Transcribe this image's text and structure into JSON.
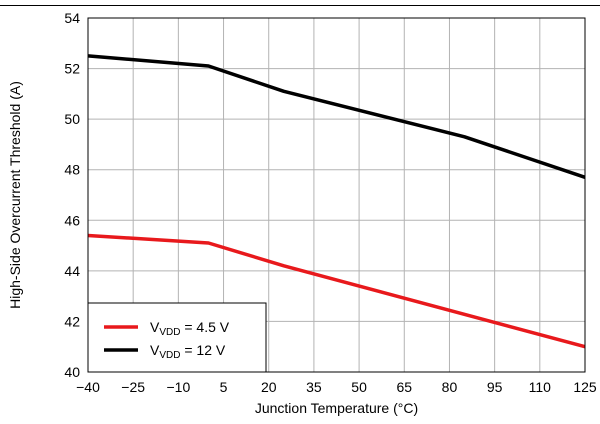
{
  "chart_data": {
    "type": "line",
    "title": "",
    "xlabel": "Junction Temperature (°C)",
    "ylabel": "High-Side Overcurrent Threshold (A)",
    "xlim": [
      -40,
      125
    ],
    "ylim": [
      40,
      54
    ],
    "xticks": [
      -40,
      -25,
      -10,
      5,
      20,
      35,
      50,
      65,
      80,
      95,
      110,
      125
    ],
    "yticks": [
      40,
      42,
      44,
      46,
      48,
      50,
      52,
      54
    ],
    "x_tick_labels": [
      "−40",
      "−25",
      "−10",
      "5",
      "20",
      "35",
      "50",
      "65",
      "80",
      "95",
      "110",
      "125"
    ],
    "y_tick_labels": [
      "40",
      "42",
      "44",
      "46",
      "48",
      "50",
      "52",
      "54"
    ],
    "grid": true,
    "legend_position": "bottom-left",
    "series": [
      {
        "name": "V_VDD = 4.5 V",
        "legend": {
          "main": "V",
          "sub": "VDD",
          "rest": " = 4.5 V"
        },
        "color": "#e8191c",
        "x": [
          -40,
          0,
          25,
          125
        ],
        "y": [
          45.4,
          45.1,
          44.2,
          41.0
        ]
      },
      {
        "name": "V_VDD = 12 V",
        "legend": {
          "main": "V",
          "sub": "VDD",
          "rest": " = 12 V"
        },
        "color": "#000000",
        "x": [
          -40,
          0,
          25,
          85,
          125
        ],
        "y": [
          52.5,
          52.1,
          51.1,
          49.3,
          47.7
        ]
      }
    ]
  }
}
